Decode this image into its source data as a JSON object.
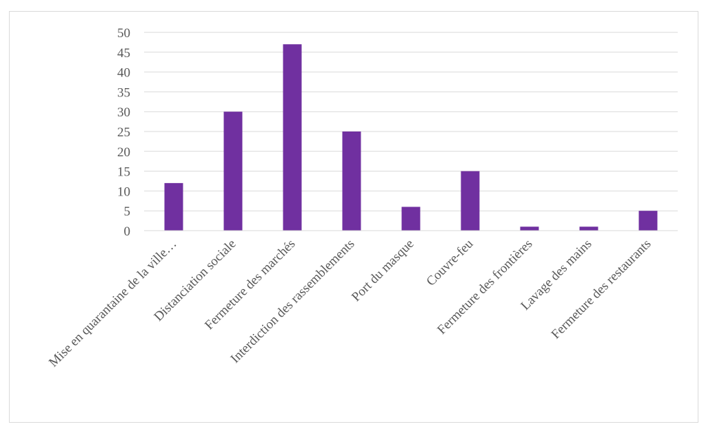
{
  "chart_data": {
    "type": "bar",
    "categories": [
      "Mise en quarantaine de la ville…",
      "Distanciation sociale",
      "Fermeture des marchés",
      "Interdiction des rassemblements",
      "Port du masque",
      "Couvre-feu",
      "Fermeture des frontières",
      "Lavage des mains",
      "Fermeture des restaurants"
    ],
    "values": [
      12,
      30,
      47,
      25,
      6,
      15,
      1,
      1,
      5
    ],
    "y_ticks": [
      "0",
      "5",
      "10",
      "15",
      "20",
      "25",
      "30",
      "35",
      "40",
      "45",
      "50"
    ],
    "ylim": [
      0,
      50
    ],
    "title": "",
    "xlabel": "",
    "ylabel": "",
    "grid": true,
    "legend": "none",
    "bar_color": "#7030a0",
    "grid_color": "#d9d9d9"
  }
}
